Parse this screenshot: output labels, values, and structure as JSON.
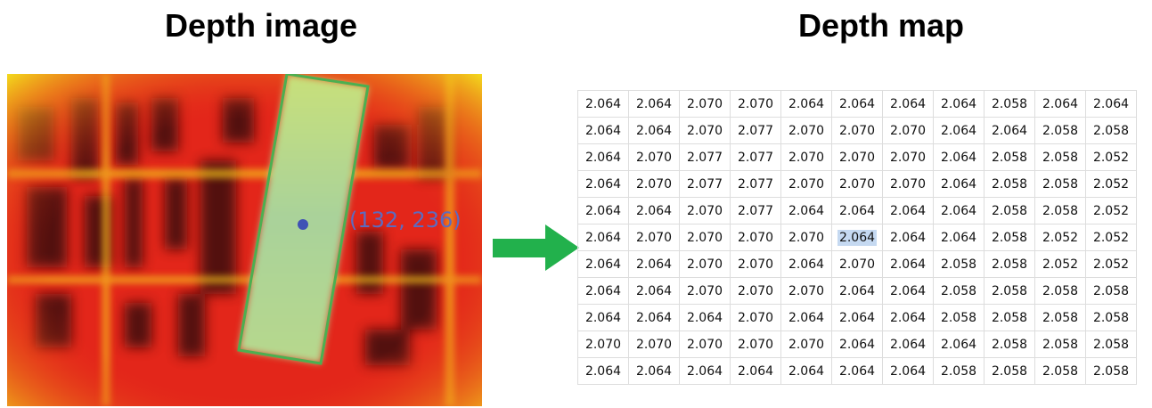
{
  "left_panel": {
    "title": "Depth image",
    "point_label": "(132, 236)"
  },
  "right_panel": {
    "title": "Depth map",
    "highlighted_cell": {
      "row": 5,
      "col": 5
    },
    "table": {
      "rows": [
        [
          "2.064",
          "2.064",
          "2.070",
          "2.070",
          "2.064",
          "2.064",
          "2.064",
          "2.064",
          "2.058",
          "2.064",
          "2.064"
        ],
        [
          "2.064",
          "2.064",
          "2.070",
          "2.077",
          "2.070",
          "2.070",
          "2.070",
          "2.064",
          "2.064",
          "2.058",
          "2.058"
        ],
        [
          "2.064",
          "2.070",
          "2.077",
          "2.077",
          "2.070",
          "2.070",
          "2.070",
          "2.064",
          "2.058",
          "2.058",
          "2.052"
        ],
        [
          "2.064",
          "2.070",
          "2.077",
          "2.077",
          "2.070",
          "2.070",
          "2.070",
          "2.064",
          "2.058",
          "2.058",
          "2.052"
        ],
        [
          "2.064",
          "2.064",
          "2.070",
          "2.077",
          "2.064",
          "2.064",
          "2.064",
          "2.064",
          "2.058",
          "2.058",
          "2.052"
        ],
        [
          "2.064",
          "2.070",
          "2.070",
          "2.070",
          "2.070",
          "2.064",
          "2.064",
          "2.064",
          "2.058",
          "2.052",
          "2.052"
        ],
        [
          "2.064",
          "2.064",
          "2.070",
          "2.070",
          "2.064",
          "2.070",
          "2.064",
          "2.058",
          "2.058",
          "2.052",
          "2.052"
        ],
        [
          "2.064",
          "2.064",
          "2.070",
          "2.070",
          "2.070",
          "2.064",
          "2.064",
          "2.058",
          "2.058",
          "2.058",
          "2.058"
        ],
        [
          "2.064",
          "2.064",
          "2.064",
          "2.070",
          "2.064",
          "2.064",
          "2.064",
          "2.058",
          "2.058",
          "2.058",
          "2.058"
        ],
        [
          "2.070",
          "2.070",
          "2.070",
          "2.070",
          "2.070",
          "2.064",
          "2.064",
          "2.064",
          "2.058",
          "2.058",
          "2.058"
        ],
        [
          "2.064",
          "2.064",
          "2.064",
          "2.064",
          "2.064",
          "2.064",
          "2.064",
          "2.058",
          "2.058",
          "2.058",
          "2.058"
        ]
      ]
    }
  }
}
